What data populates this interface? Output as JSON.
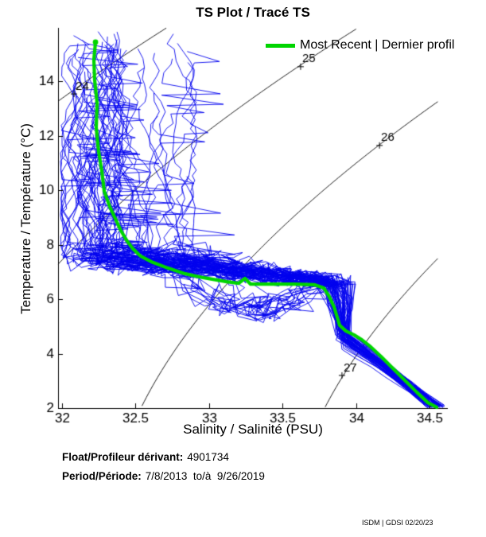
{
  "title": "TS Plot / Tracé TS",
  "legend": {
    "label": "Most Recent | Dernier profil",
    "color": "#00D500"
  },
  "axes": {
    "xlabel": "Salinity / Salinité (PSU)",
    "ylabel": "Temperature / Température (°C)",
    "x_ticks": [
      "32",
      "32.5",
      "33",
      "33.5",
      "34",
      "34.5"
    ],
    "x_tick_values": [
      32,
      32.5,
      33,
      33.5,
      34,
      34.5
    ],
    "y_ticks": [
      "2",
      "4",
      "6",
      "8",
      "10",
      "12",
      "14"
    ],
    "y_tick_values": [
      2,
      4,
      6,
      8,
      10,
      12,
      14
    ],
    "xlim": [
      31.976,
      34.624
    ],
    "ylim": [
      2,
      15.956
    ]
  },
  "chart_data": {
    "type": "line",
    "title": "TS Plot / Tracé TS",
    "xlabel": "Salinity / Salinité (PSU)",
    "ylabel": "Temperature / Température (°C)",
    "xlim": [
      31.976,
      34.624
    ],
    "ylim": [
      2,
      15.956
    ],
    "grid": false,
    "legend_position": "top-right",
    "axis_color": "#000000",
    "density_contours": {
      "color": "#000000",
      "levels": [
        24,
        25,
        26,
        27
      ],
      "s_max_drawn": 34.57,
      "labels": [
        {
          "level": "24",
          "s": 32.084,
          "t": 13.53
        },
        {
          "level": "25",
          "s": 33.624,
          "t": 14.53
        },
        {
          "level": "26",
          "s": 34.16,
          "t": 11.64
        },
        {
          "level": "27",
          "s": 33.905,
          "t": 3.2
        }
      ]
    },
    "most_recent_profile": {
      "name": "Most Recent | Dernier profil",
      "color": "#00D500",
      "points": [
        [
          32.23,
          15.43
        ],
        [
          32.219,
          14.79
        ],
        [
          32.224,
          14.06
        ],
        [
          32.241,
          13.18
        ],
        [
          32.235,
          12.31
        ],
        [
          32.251,
          11.43
        ],
        [
          32.273,
          10.7
        ],
        [
          32.289,
          9.97
        ],
        [
          32.327,
          9.39
        ],
        [
          32.365,
          8.95
        ],
        [
          32.403,
          8.51
        ],
        [
          32.441,
          8.16
        ],
        [
          32.484,
          7.85
        ],
        [
          32.538,
          7.57
        ],
        [
          32.619,
          7.35
        ],
        [
          32.716,
          7.15
        ],
        [
          32.84,
          6.93
        ],
        [
          32.96,
          6.79
        ],
        [
          33.122,
          6.64
        ],
        [
          33.203,
          6.58
        ],
        [
          33.246,
          6.76
        ],
        [
          33.284,
          6.55
        ],
        [
          33.419,
          6.55
        ],
        [
          33.581,
          6.55
        ],
        [
          33.716,
          6.53
        ],
        [
          33.781,
          6.41
        ],
        [
          33.819,
          6.09
        ],
        [
          33.851,
          5.71
        ],
        [
          33.873,
          5.33
        ],
        [
          33.889,
          5.04
        ],
        [
          33.932,
          4.83
        ],
        [
          33.986,
          4.69
        ],
        [
          34.04,
          4.51
        ],
        [
          34.1,
          4.25
        ],
        [
          34.17,
          3.9
        ],
        [
          34.251,
          3.46
        ],
        [
          34.332,
          3.02
        ],
        [
          34.414,
          2.58
        ],
        [
          34.489,
          2.2
        ],
        [
          34.549,
          2.03
        ]
      ]
    },
    "profile_ensemble": {
      "color": "#0000EE",
      "count": 64,
      "seed": 20230220,
      "surface_s_range": [
        32.0,
        32.75
      ],
      "surface_t_range": [
        10.5,
        15.85
      ],
      "thermocline_band_t_range": [
        6.3,
        8.3
      ],
      "deep_endpoint": [
        34.55,
        2.05
      ]
    }
  },
  "footer": {
    "float_label": "Float/Profileur dérivant:",
    "float_value": "4901734",
    "period_label": "Period/Période:",
    "period_value": "7/8/2013  to/à  9/26/2019",
    "credit": "ISDM | GDSI 02/20/23"
  }
}
